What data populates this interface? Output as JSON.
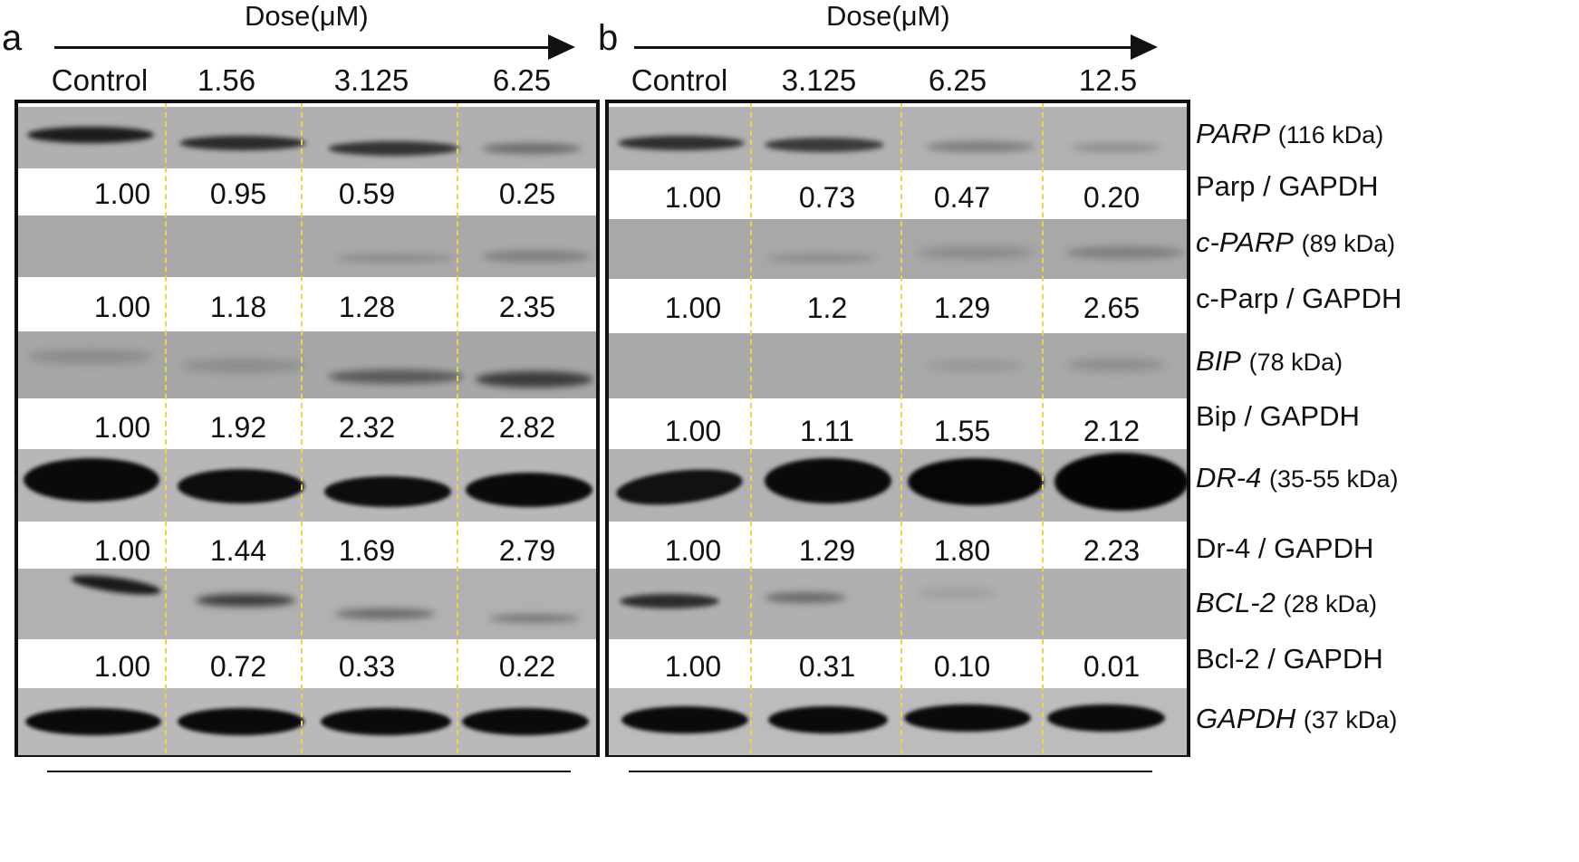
{
  "panels": [
    {
      "letter": "a",
      "dose_label": "Dose(μM)",
      "columns": [
        "Control",
        "1.56",
        "3.125",
        "6.25"
      ],
      "ratios": {
        "parp": [
          "1.00",
          "0.95",
          "0.59",
          "0.25"
        ],
        "cparp": [
          "1.00",
          "1.18",
          "1.28",
          "2.35"
        ],
        "bip": [
          "1.00",
          "1.92",
          "2.32",
          "2.82"
        ],
        "dr4": [
          "1.00",
          "1.44",
          "1.69",
          "2.79"
        ],
        "bcl2": [
          "1.00",
          "0.72",
          "0.33",
          "0.22"
        ]
      }
    },
    {
      "letter": "b",
      "dose_label": "Dose(μM)",
      "columns": [
        "Control",
        "3.125",
        "6.25",
        "12.5"
      ],
      "ratios": {
        "parp": [
          "1.00",
          "0.73",
          "0.47",
          "0.20"
        ],
        "cparp": [
          "1.00",
          "1.2",
          "1.29",
          "2.65"
        ],
        "bip": [
          "1.00",
          "1.11",
          "1.55",
          "2.12"
        ],
        "dr4": [
          "1.00",
          "1.29",
          "1.80",
          "2.23"
        ],
        "bcl2": [
          "1.00",
          "0.31",
          "0.10",
          "0.01"
        ]
      }
    }
  ],
  "labels": {
    "parp": {
      "name": "PARP",
      "kda": "(116 kDa)"
    },
    "parp_ratio": "Parp / GAPDH",
    "cparp": {
      "name": "c-PARP",
      "kda": "(89 kDa)"
    },
    "cparp_ratio": "c-Parp / GAPDH",
    "bip": {
      "name": "BIP",
      "kda": "(78 kDa)"
    },
    "bip_ratio": "Bip / GAPDH",
    "dr4": {
      "name": "DR-4",
      "kda": "(35-55 kDa)"
    },
    "dr4_ratio": "Dr-4  / GAPDH",
    "bcl2": {
      "name": "BCL-2",
      "kda": "(28 kDa)"
    },
    "bcl2_ratio": "Bcl-2 / GAPDH",
    "gapdh": {
      "name": "GAPDH",
      "kda": "(37 kDa)"
    }
  },
  "colors": {
    "blot_background": "#a9a9a9",
    "blot_background_light": "#b4b4b4",
    "band_dark": "#0a0a0a",
    "lane_divider": "#e6d64a"
  }
}
